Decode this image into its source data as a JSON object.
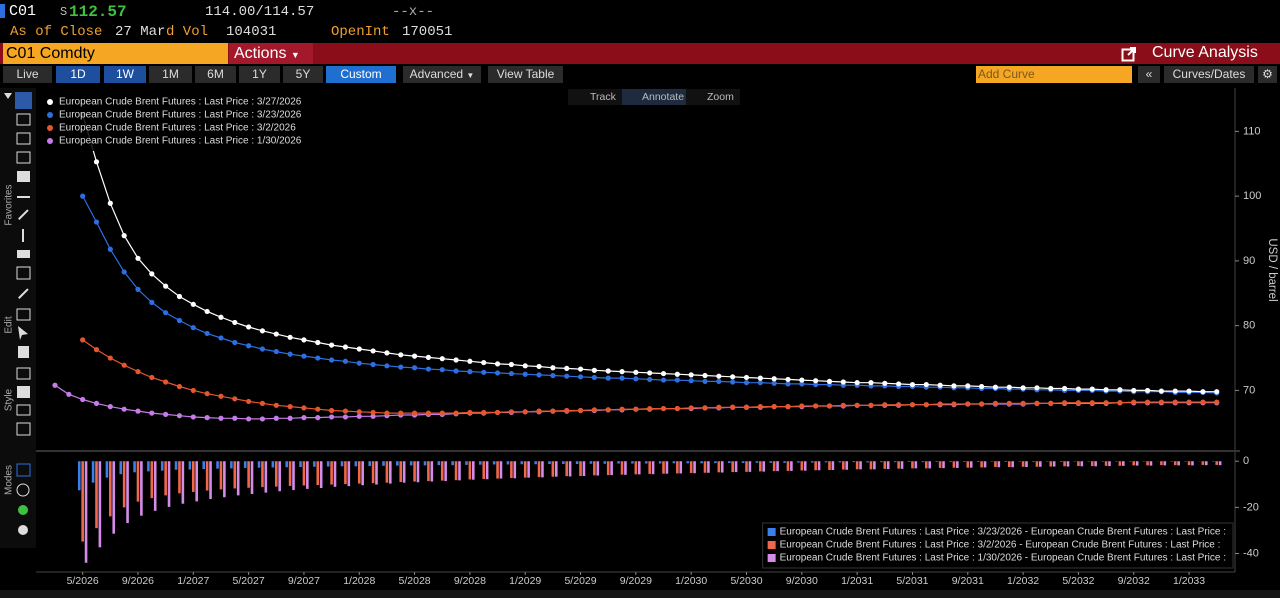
{
  "header": {
    "ticker": "C01",
    "price_prefix": "S",
    "price": "112.57",
    "bid_ask": "114.00/114.57",
    "change": "--x--",
    "as_of": "As of Close",
    "date": "27 Mar",
    "vol_label": "d Vol",
    "vol": "104031",
    "oi_label": "OpenInt",
    "oi": "170051"
  },
  "title_bar": {
    "security": "C01 Comdty",
    "actions": "Actions",
    "app": "Curve Analysis"
  },
  "toolbar": {
    "periods": [
      "Live",
      "1D",
      "1W",
      "1M",
      "6M",
      "1Y",
      "5Y",
      "Custom"
    ],
    "advanced": "Advanced",
    "view_table": "View Table",
    "add_curve": "Add Curve",
    "curves_dates": "Curves/Dates"
  },
  "chart_tools": [
    "Track",
    "Annotate",
    "Zoom"
  ],
  "sidebar": [
    "Favorites",
    "Edit",
    "Style",
    "Modes"
  ],
  "chart_data": [
    {
      "type": "line",
      "y_label": "USD / barrel",
      "legend": "upper left",
      "x": [
        "3/2026",
        "4/2026",
        "5/2026",
        "6/2026",
        "7/2026",
        "8/2026",
        "9/2026",
        "10/2026",
        "11/2026",
        "12/2026",
        "1/2027",
        "2/2027",
        "3/2027",
        "4/2027",
        "5/2027",
        "6/2027",
        "7/2027",
        "8/2027",
        "9/2027",
        "10/2027",
        "11/2027",
        "12/2027",
        "1/2028",
        "2/2028",
        "3/2028",
        "4/2028",
        "5/2028",
        "6/2028",
        "7/2028",
        "8/2028",
        "9/2028",
        "10/2028",
        "11/2028",
        "12/2028",
        "1/2029",
        "2/2029",
        "3/2029",
        "4/2029",
        "5/2029",
        "6/2029",
        "7/2029",
        "8/2029",
        "9/2029",
        "10/2029",
        "11/2029",
        "12/2029",
        "1/2030",
        "2/2030",
        "3/2030",
        "4/2030",
        "5/2030",
        "6/2030",
        "7/2030",
        "8/2030",
        "9/2030",
        "10/2030",
        "11/2030",
        "12/2030",
        "1/2031",
        "2/2031",
        "3/2031",
        "4/2031",
        "5/2031",
        "6/2031",
        "7/2031",
        "8/2031",
        "9/2031",
        "10/2031",
        "11/2031",
        "12/2031",
        "1/2032",
        "2/2032",
        "3/2032",
        "4/2032",
        "5/2032",
        "6/2032",
        "7/2032",
        "8/2032",
        "9/2032",
        "10/2032",
        "11/2032",
        "12/2032",
        "1/2033",
        "2/2033",
        "3/2033"
      ],
      "ylim": [
        60.8,
        116.7
      ],
      "yticks": [
        70,
        80,
        90,
        100,
        110
      ],
      "series": [
        {
          "name": "European Crude Brent Futures : Last Price : 3/27/2026",
          "color": "#ffffff",
          "values": [
            null,
            null,
            112.6,
            105.3,
            98.9,
            93.9,
            90.4,
            88.0,
            86.1,
            84.5,
            83.3,
            82.2,
            81.3,
            80.5,
            79.8,
            79.2,
            78.7,
            78.2,
            77.8,
            77.4,
            77.0,
            76.7,
            76.4,
            76.1,
            75.8,
            75.5,
            75.3,
            75.1,
            74.9,
            74.7,
            74.5,
            74.3,
            74.1,
            74.0,
            73.8,
            73.7,
            73.5,
            73.4,
            73.3,
            73.1,
            73.0,
            72.9,
            72.8,
            72.7,
            72.6,
            72.5,
            72.4,
            72.3,
            72.2,
            72.1,
            72.0,
            71.9,
            71.8,
            71.7,
            71.6,
            71.5,
            71.4,
            71.3,
            71.2,
            71.2,
            71.1,
            71.0,
            70.9,
            70.9,
            70.8,
            70.7,
            70.7,
            70.6,
            70.5,
            70.5,
            70.4,
            70.4,
            70.3,
            70.3,
            70.2,
            70.2,
            70.1,
            70.1,
            70.0,
            70.0,
            69.9,
            69.9,
            69.9,
            69.8,
            69.8
          ]
        },
        {
          "name": "European Crude Brent Futures : Last Price : 3/23/2026",
          "color": "#2d6fe0",
          "values": [
            null,
            null,
            100.0,
            96.0,
            91.8,
            88.3,
            85.6,
            83.6,
            82.0,
            80.8,
            79.7,
            78.8,
            78.1,
            77.4,
            76.9,
            76.4,
            76.0,
            75.6,
            75.3,
            75.0,
            74.7,
            74.5,
            74.2,
            74.0,
            73.8,
            73.6,
            73.5,
            73.3,
            73.2,
            73.0,
            72.9,
            72.8,
            72.7,
            72.6,
            72.5,
            72.4,
            72.3,
            72.2,
            72.1,
            72.0,
            71.9,
            71.9,
            71.8,
            71.7,
            71.6,
            71.6,
            71.5,
            71.4,
            71.4,
            71.3,
            71.2,
            71.2,
            71.1,
            71.0,
            71.0,
            70.9,
            70.9,
            70.8,
            70.8,
            70.7,
            70.7,
            70.6,
            70.6,
            70.5,
            70.5,
            70.4,
            70.4,
            70.3,
            70.3,
            70.2,
            70.2,
            70.1,
            70.1,
            70.0,
            70.0,
            70.0,
            69.9,
            69.9,
            69.8,
            69.8,
            69.8,
            69.7,
            69.7,
            69.7,
            69.6
          ]
        },
        {
          "name": "European Crude Brent Futures : Last Price : 3/2/2026",
          "color": "#e4572e",
          "values": [
            null,
            null,
            77.8,
            76.3,
            75.0,
            73.9,
            72.9,
            72.0,
            71.3,
            70.6,
            70.0,
            69.5,
            69.1,
            68.7,
            68.3,
            68.0,
            67.7,
            67.5,
            67.3,
            67.1,
            66.9,
            66.8,
            66.7,
            66.6,
            66.5,
            66.5,
            66.5,
            66.5,
            66.5,
            66.5,
            66.6,
            66.6,
            66.6,
            66.7,
            66.7,
            66.8,
            66.8,
            66.9,
            66.9,
            67.0,
            67.0,
            67.1,
            67.1,
            67.2,
            67.2,
            67.2,
            67.3,
            67.3,
            67.4,
            67.4,
            67.4,
            67.5,
            67.5,
            67.5,
            67.6,
            67.6,
            67.6,
            67.7,
            67.7,
            67.7,
            67.8,
            67.8,
            67.8,
            67.8,
            67.9,
            67.9,
            67.9,
            67.9,
            68.0,
            68.0,
            68.0,
            68.0,
            68.0,
            68.1,
            68.1,
            68.1,
            68.1,
            68.1,
            68.2,
            68.2,
            68.2,
            68.2,
            68.2,
            68.2,
            68.2
          ]
        },
        {
          "name": "European Crude Brent Futures : Last Price : 1/30/2026",
          "color": "#c67be8",
          "values": [
            70.8,
            69.4,
            68.6,
            68.0,
            67.5,
            67.1,
            66.8,
            66.5,
            66.3,
            66.1,
            65.9,
            65.8,
            65.7,
            65.7,
            65.6,
            65.6,
            65.7,
            65.7,
            65.8,
            65.8,
            65.9,
            65.9,
            66.0,
            66.0,
            66.1,
            66.2,
            66.2,
            66.3,
            66.3,
            66.4,
            66.5,
            66.5,
            66.6,
            66.6,
            66.7,
            66.7,
            66.8,
            66.8,
            66.9,
            66.9,
            67.0,
            67.0,
            67.1,
            67.1,
            67.2,
            67.2,
            67.2,
            67.3,
            67.3,
            67.4,
            67.4,
            67.4,
            67.5,
            67.5,
            67.5,
            67.6,
            67.6,
            67.6,
            67.7,
            67.7,
            67.7,
            67.7,
            67.8,
            67.8,
            67.8,
            67.8,
            67.9,
            67.9,
            67.9,
            67.9,
            67.9,
            68.0,
            68.0,
            68.0,
            68.0,
            68.0,
            68.0,
            68.1,
            68.1,
            68.1,
            68.1,
            68.1,
            68.1,
            68.1,
            68.1
          ]
        }
      ]
    },
    {
      "type": "bar",
      "legend": "lower right",
      "x": [
        "3/2026",
        "4/2026",
        "5/2026",
        "6/2026",
        "7/2026",
        "8/2026",
        "9/2026",
        "10/2026",
        "11/2026",
        "12/2026",
        "1/2027",
        "2/2027",
        "3/2027",
        "4/2027",
        "5/2027",
        "6/2027",
        "7/2027",
        "8/2027",
        "9/2027",
        "10/2027",
        "11/2027",
        "12/2027",
        "1/2028",
        "2/2028",
        "3/2028",
        "4/2028",
        "5/2028",
        "6/2028",
        "7/2028",
        "8/2028",
        "9/2028",
        "10/2028",
        "11/2028",
        "12/2028",
        "1/2029",
        "2/2029",
        "3/2029",
        "4/2029",
        "5/2029",
        "6/2029",
        "7/2029",
        "8/2029",
        "9/2029",
        "10/2029",
        "11/2029",
        "12/2029",
        "1/2030",
        "2/2030",
        "3/2030",
        "4/2030",
        "5/2030",
        "6/2030",
        "7/2030",
        "8/2030",
        "9/2030",
        "10/2030",
        "11/2030",
        "12/2030",
        "1/2031",
        "2/2031",
        "3/2031",
        "4/2031",
        "5/2031",
        "6/2031",
        "7/2031",
        "8/2031",
        "9/2031",
        "10/2031",
        "11/2031",
        "12/2031",
        "1/2032",
        "2/2032",
        "3/2032",
        "4/2032",
        "5/2032",
        "6/2032",
        "7/2032",
        "8/2032",
        "9/2032",
        "10/2032",
        "11/2032",
        "12/2032",
        "1/2033",
        "2/2033",
        "3/2033"
      ],
      "xticks": [
        "5/2026",
        "9/2026",
        "1/2027",
        "5/2027",
        "9/2027",
        "1/2028",
        "5/2028",
        "9/2028",
        "1/2029",
        "5/2029",
        "9/2029",
        "1/2030",
        "5/2030",
        "9/2030",
        "1/2031",
        "5/2031",
        "9/2031",
        "1/2032",
        "5/2032",
        "9/2032",
        "1/2033"
      ],
      "ylim": [
        -48,
        4
      ],
      "yticks": [
        0,
        -20,
        -40
      ],
      "series": [
        {
          "name": "European Crude Brent Futures : Last Price : 3/23/2026 - European Crude Brent Futures : Last Price :",
          "color": "#3b7fe8",
          "values": [
            null,
            null,
            -12.6,
            -9.3,
            -7.1,
            -5.6,
            -4.8,
            -4.4,
            -4.1,
            -3.7,
            -3.6,
            -3.4,
            -3.2,
            -3.1,
            -2.9,
            -2.8,
            -2.7,
            -2.6,
            -2.5,
            -2.4,
            -2.3,
            -2.2,
            -2.2,
            -2.1,
            -2.0,
            -1.9,
            -1.8,
            -1.8,
            -1.7,
            -1.7,
            -1.6,
            -1.5,
            -1.4,
            -1.4,
            -1.3,
            -1.3,
            -1.2,
            -1.2,
            -1.2,
            -1.1,
            -1.1,
            -1.0,
            -1.0,
            -1.0,
            -1.0,
            -0.9,
            -0.9,
            -0.9,
            -0.8,
            -0.8,
            -0.8,
            -0.7,
            -0.7,
            -0.7,
            -0.6,
            -0.6,
            -0.5,
            -0.5,
            -0.4,
            -0.5,
            -0.4,
            -0.4,
            -0.3,
            -0.4,
            -0.3,
            -0.3,
            -0.3,
            -0.3,
            -0.2,
            -0.3,
            -0.2,
            -0.3,
            -0.2,
            -0.3,
            -0.2,
            -0.2,
            -0.2,
            -0.2,
            -0.2,
            -0.2,
            -0.1,
            -0.2,
            -0.2,
            -0.1,
            -0.2
          ]
        },
        {
          "name": "European Crude Brent Futures : Last Price : 3/2/2026 - European Crude Brent Futures : Last Price :",
          "color": "#f0684a",
          "values": [
            null,
            null,
            -34.8,
            -29.0,
            -23.9,
            -20.0,
            -17.5,
            -16.0,
            -14.8,
            -13.9,
            -13.3,
            -12.7,
            -12.2,
            -11.8,
            -11.5,
            -11.2,
            -11.0,
            -10.7,
            -10.5,
            -10.3,
            -10.1,
            -9.9,
            -9.7,
            -9.5,
            -9.3,
            -9.0,
            -8.8,
            -8.6,
            -8.4,
            -8.2,
            -7.9,
            -7.7,
            -7.5,
            -7.3,
            -7.1,
            -6.9,
            -6.7,
            -6.5,
            -6.4,
            -6.1,
            -6.0,
            -5.8,
            -5.7,
            -5.5,
            -5.4,
            -5.3,
            -5.1,
            -5.0,
            -4.8,
            -4.7,
            -4.6,
            -4.4,
            -4.3,
            -4.2,
            -4.0,
            -3.9,
            -3.8,
            -3.6,
            -3.5,
            -3.5,
            -3.3,
            -3.2,
            -3.1,
            -3.1,
            -2.9,
            -2.8,
            -2.8,
            -2.7,
            -2.5,
            -2.5,
            -2.4,
            -2.4,
            -2.3,
            -2.2,
            -2.1,
            -2.1,
            -2.0,
            -2.0,
            -1.8,
            -1.8,
            -1.7,
            -1.7,
            -1.7,
            -1.6,
            -1.6
          ]
        },
        {
          "name": "European Crude Brent Futures : Last Price : 1/30/2026 - European Crude Brent Futures : Last Price :",
          "color": "#d58be8",
          "values": [
            null,
            null,
            -44.0,
            -37.3,
            -31.4,
            -26.8,
            -23.6,
            -21.5,
            -19.8,
            -18.4,
            -17.4,
            -16.4,
            -15.6,
            -14.8,
            -14.2,
            -13.6,
            -13.0,
            -12.5,
            -12.0,
            -11.6,
            -11.1,
            -10.8,
            -10.4,
            -10.1,
            -9.7,
            -9.3,
            -9.1,
            -8.8,
            -8.6,
            -8.3,
            -8.0,
            -7.8,
            -7.5,
            -7.4,
            -7.1,
            -7.0,
            -6.7,
            -6.6,
            -6.4,
            -6.2,
            -6.0,
            -5.9,
            -5.7,
            -5.6,
            -5.4,
            -5.3,
            -5.2,
            -5.0,
            -4.9,
            -4.7,
            -4.6,
            -4.5,
            -4.3,
            -4.2,
            -4.1,
            -3.9,
            -3.8,
            -3.7,
            -3.5,
            -3.5,
            -3.4,
            -3.3,
            -3.1,
            -3.1,
            -3.0,
            -2.9,
            -2.8,
            -2.7,
            -2.6,
            -2.6,
            -2.5,
            -2.4,
            -2.3,
            -2.3,
            -2.2,
            -2.2,
            -2.1,
            -2.0,
            -1.9,
            -1.9,
            -1.8,
            -1.8,
            -1.8,
            -1.7,
            -1.7
          ]
        }
      ]
    }
  ]
}
